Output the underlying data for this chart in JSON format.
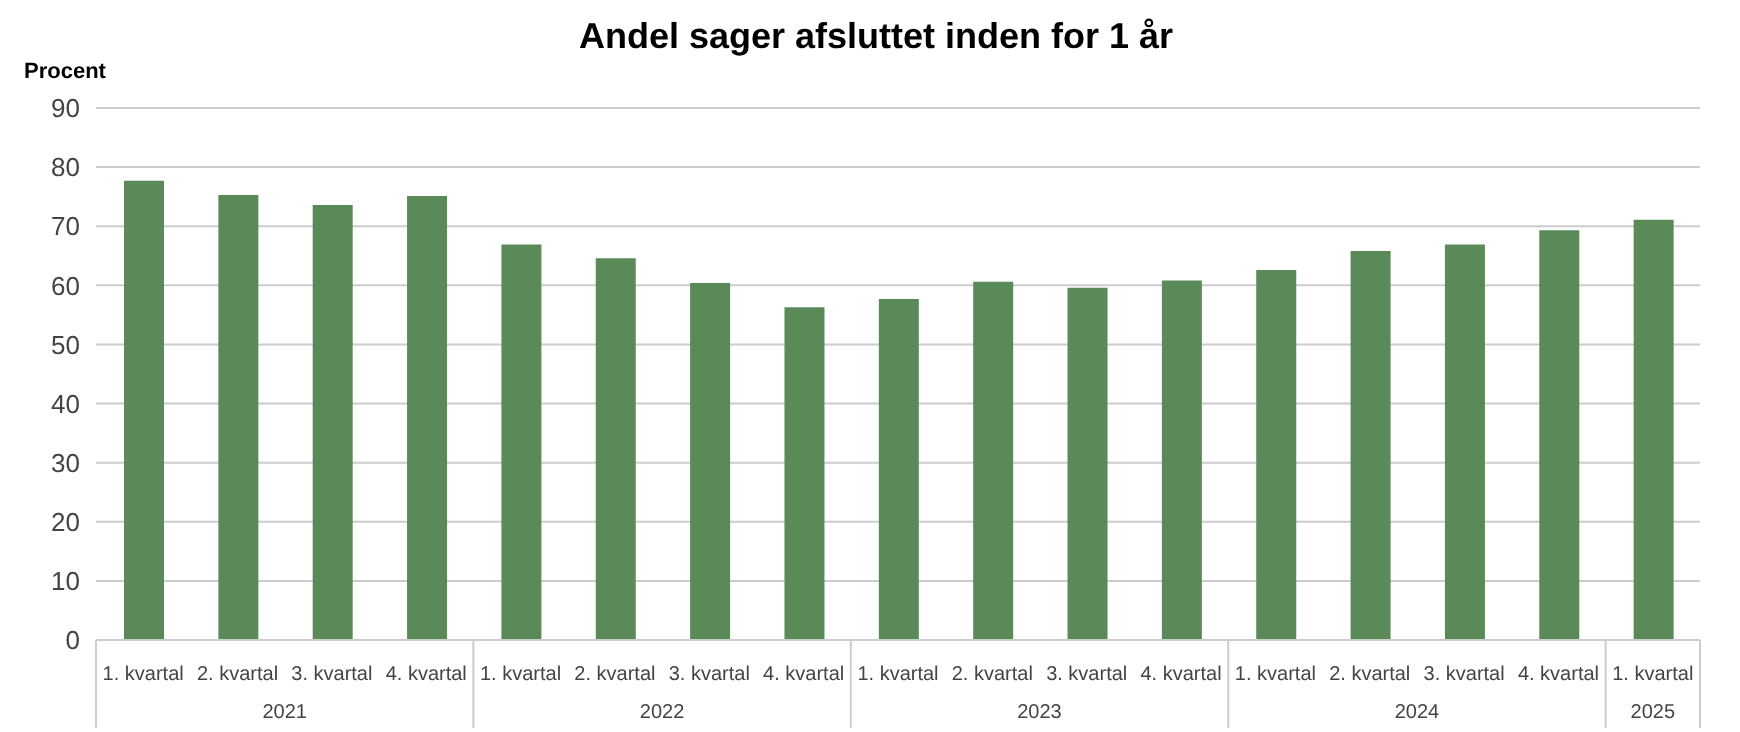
{
  "chart_data": {
    "type": "bar",
    "title": "Andel sager afsluttet inden for 1 år",
    "ylabel": "Procent",
    "categories": [
      "1. kvartal",
      "2. kvartal",
      "3. kvartal",
      "4. kvartal",
      "1. kvartal",
      "2. kvartal",
      "3. kvartal",
      "4. kvartal",
      "1. kvartal",
      "2. kvartal",
      "3. kvartal",
      "4. kvartal",
      "1. kvartal",
      "2. kvartal",
      "3. kvartal",
      "4. kvartal",
      "1. kvartal"
    ],
    "values": [
      77.7,
      75.3,
      73.6,
      75.1,
      66.9,
      64.6,
      60.4,
      56.3,
      57.7,
      60.6,
      59.6,
      60.8,
      62.6,
      65.8,
      66.9,
      69.3,
      71.1
    ],
    "color": "#5a8a58",
    "ylim": [
      0,
      90
    ],
    "yticks": [
      0,
      10,
      20,
      30,
      40,
      50,
      60,
      70,
      80,
      90
    ],
    "grid": "y",
    "annotations": [
      "2021",
      "2022",
      "2023",
      "2024",
      "2025"
    ]
  }
}
